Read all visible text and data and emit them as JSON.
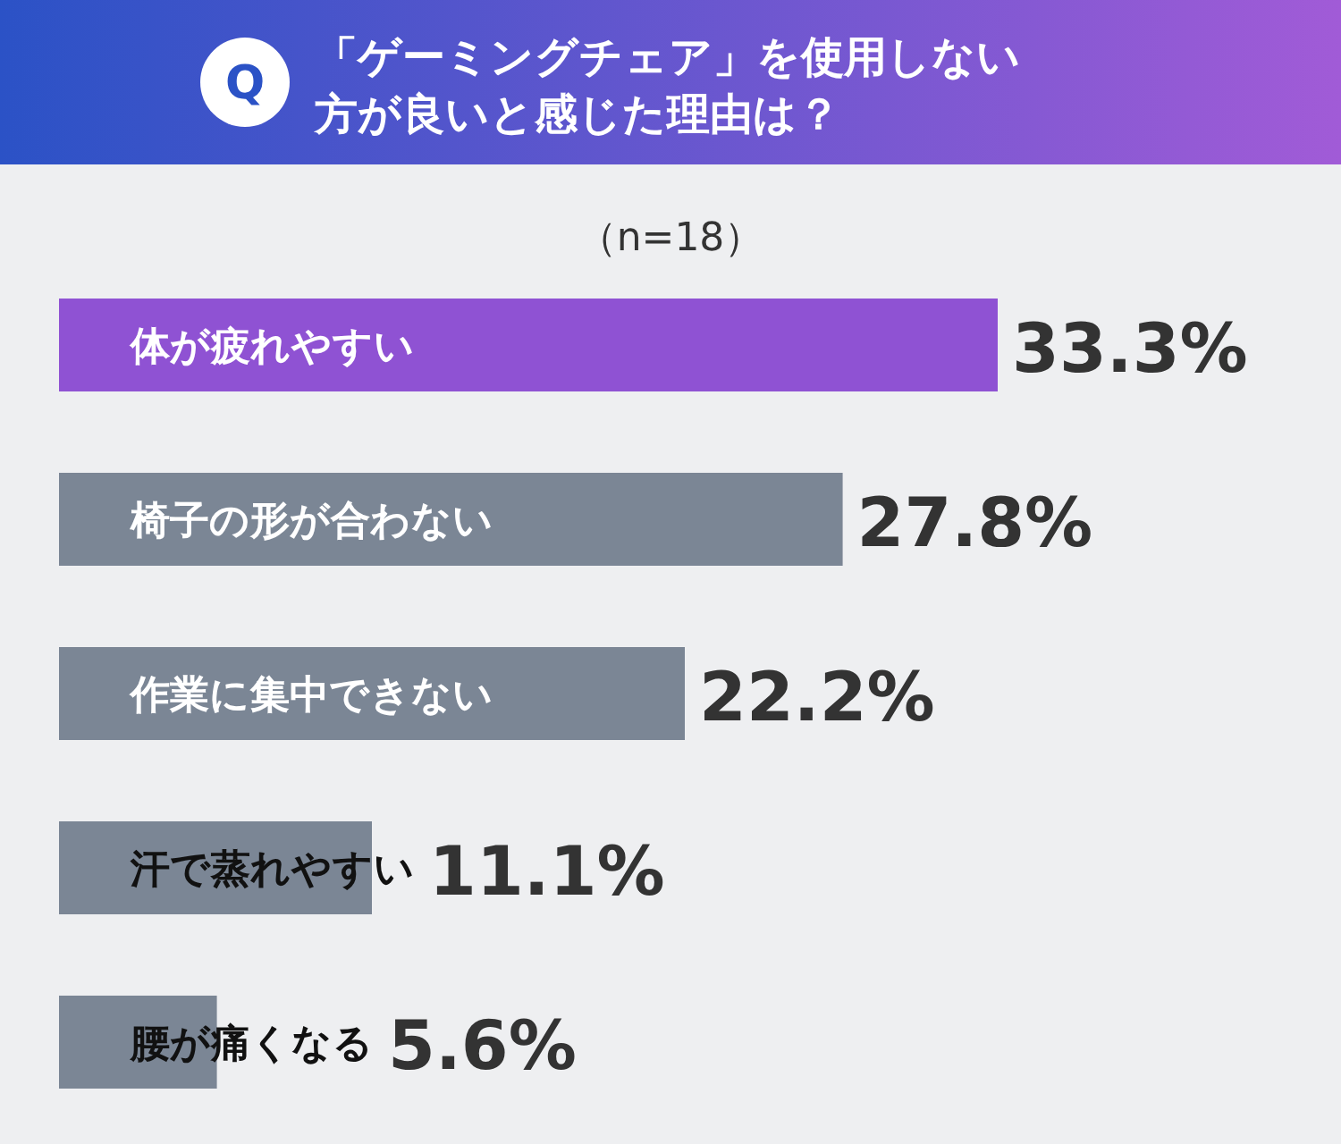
{
  "chart_data": {
    "type": "bar",
    "orientation": "horizontal",
    "title": "「ゲーミングチェア」を使用しない方が良いと感じた理由は？",
    "subtitle": "（n=18）",
    "annotations": [
      "Q"
    ],
    "categories": [
      "体が疲れやすい",
      "椅子の形が合わない",
      "作業に集中できない",
      "汗で蒸れやすい",
      "腰が痛くなる"
    ],
    "values": [
      33.3,
      27.8,
      22.2,
      11.1,
      5.6
    ],
    "colors": [
      "#8f52d3",
      "#7b8695",
      "#7b8695",
      "#7b8695",
      "#7b8695"
    ],
    "value_labels": [
      "33.3%",
      "27.8%",
      "22.2%",
      "11.1%",
      "5.6%"
    ]
  }
}
